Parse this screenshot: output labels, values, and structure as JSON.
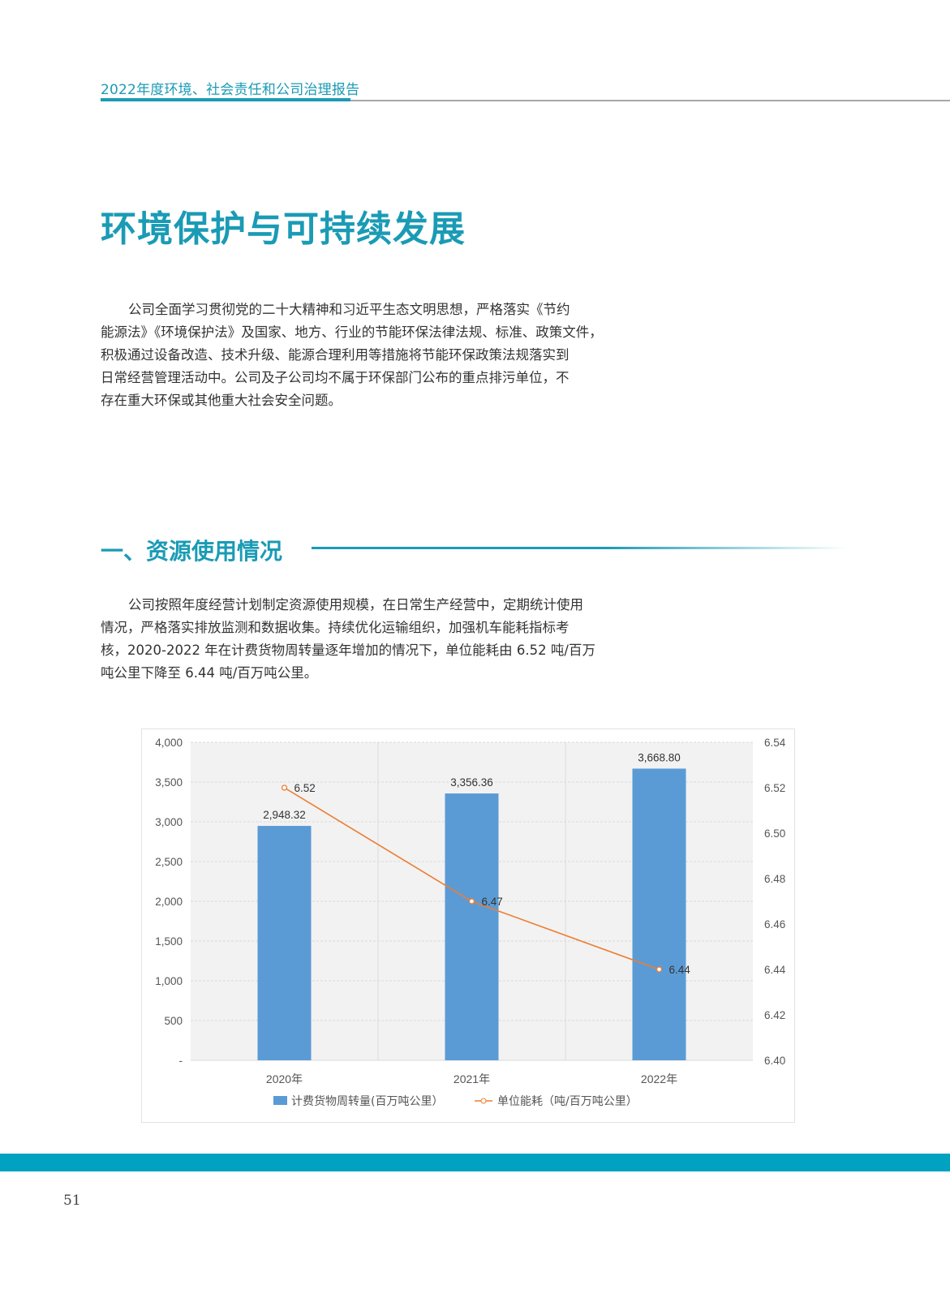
{
  "header": {
    "title": "2022年度环境、社会责任和公司治理报告"
  },
  "page_title": "环境保护与可持续发展",
  "intro_lines": [
    "公司全面学习贯彻党的二十大精神和习近平生态文明思想，严格落实《节约",
    "能源法》《环境保护法》及国家、地方、行业的节能环保法律法规、标准、政策文件，",
    "积极通过设备改造、技术升级、能源合理利用等措施将节能环保政策法规落实到",
    "日常经营管理活动中。公司及子公司均不属于环保部门公布的重点排污单位，不",
    "存在重大环保或其他重大社会安全问题。"
  ],
  "section": {
    "title": "一、资源使用情况",
    "lines": [
      "公司按照年度经营计划制定资源使用规模，在日常生产经营中，定期统计使用",
      "情况，严格落实排放监测和数据收集。持续优化运输组织，加强机车能耗指标考",
      "核，2020-2022 年在计费货物周转量逐年增加的情况下，单位能耗由 6.52 吨/百万",
      "吨公里下降至 6.44 吨/百万吨公里。"
    ]
  },
  "chart_data": {
    "type": "bar+line",
    "categories": [
      "2020年",
      "2021年",
      "2022年"
    ],
    "series": [
      {
        "name": "计费货物周转量(百万吨公里）",
        "type": "bar",
        "axis": "left",
        "values": [
          2948.32,
          3356.36,
          3668.8
        ],
        "labels": [
          "2,948.32",
          "3,356.36",
          "3,668.80"
        ],
        "color": "#5b9bd5"
      },
      {
        "name": "单位能耗（吨/百万吨公里）",
        "type": "line",
        "axis": "right",
        "values": [
          6.52,
          6.47,
          6.44
        ],
        "labels": [
          "6.52",
          "6.47",
          "6.44"
        ],
        "color": "#ed7d31"
      }
    ],
    "y_left": {
      "range": [
        0,
        4000
      ],
      "ticks": [
        "-",
        "500",
        "1,000",
        "1,500",
        "2,000",
        "2,500",
        "3,000",
        "3,500",
        "4,000"
      ]
    },
    "y_right": {
      "range": [
        6.4,
        6.54
      ],
      "ticks": [
        "6.40",
        "6.42",
        "6.44",
        "6.46",
        "6.48",
        "6.50",
        "6.52",
        "6.54"
      ]
    },
    "grid": true,
    "legend": "bottom"
  },
  "page_number": "51",
  "colors": {
    "accent": "#1a9bb5",
    "band": "#00a2c2"
  }
}
